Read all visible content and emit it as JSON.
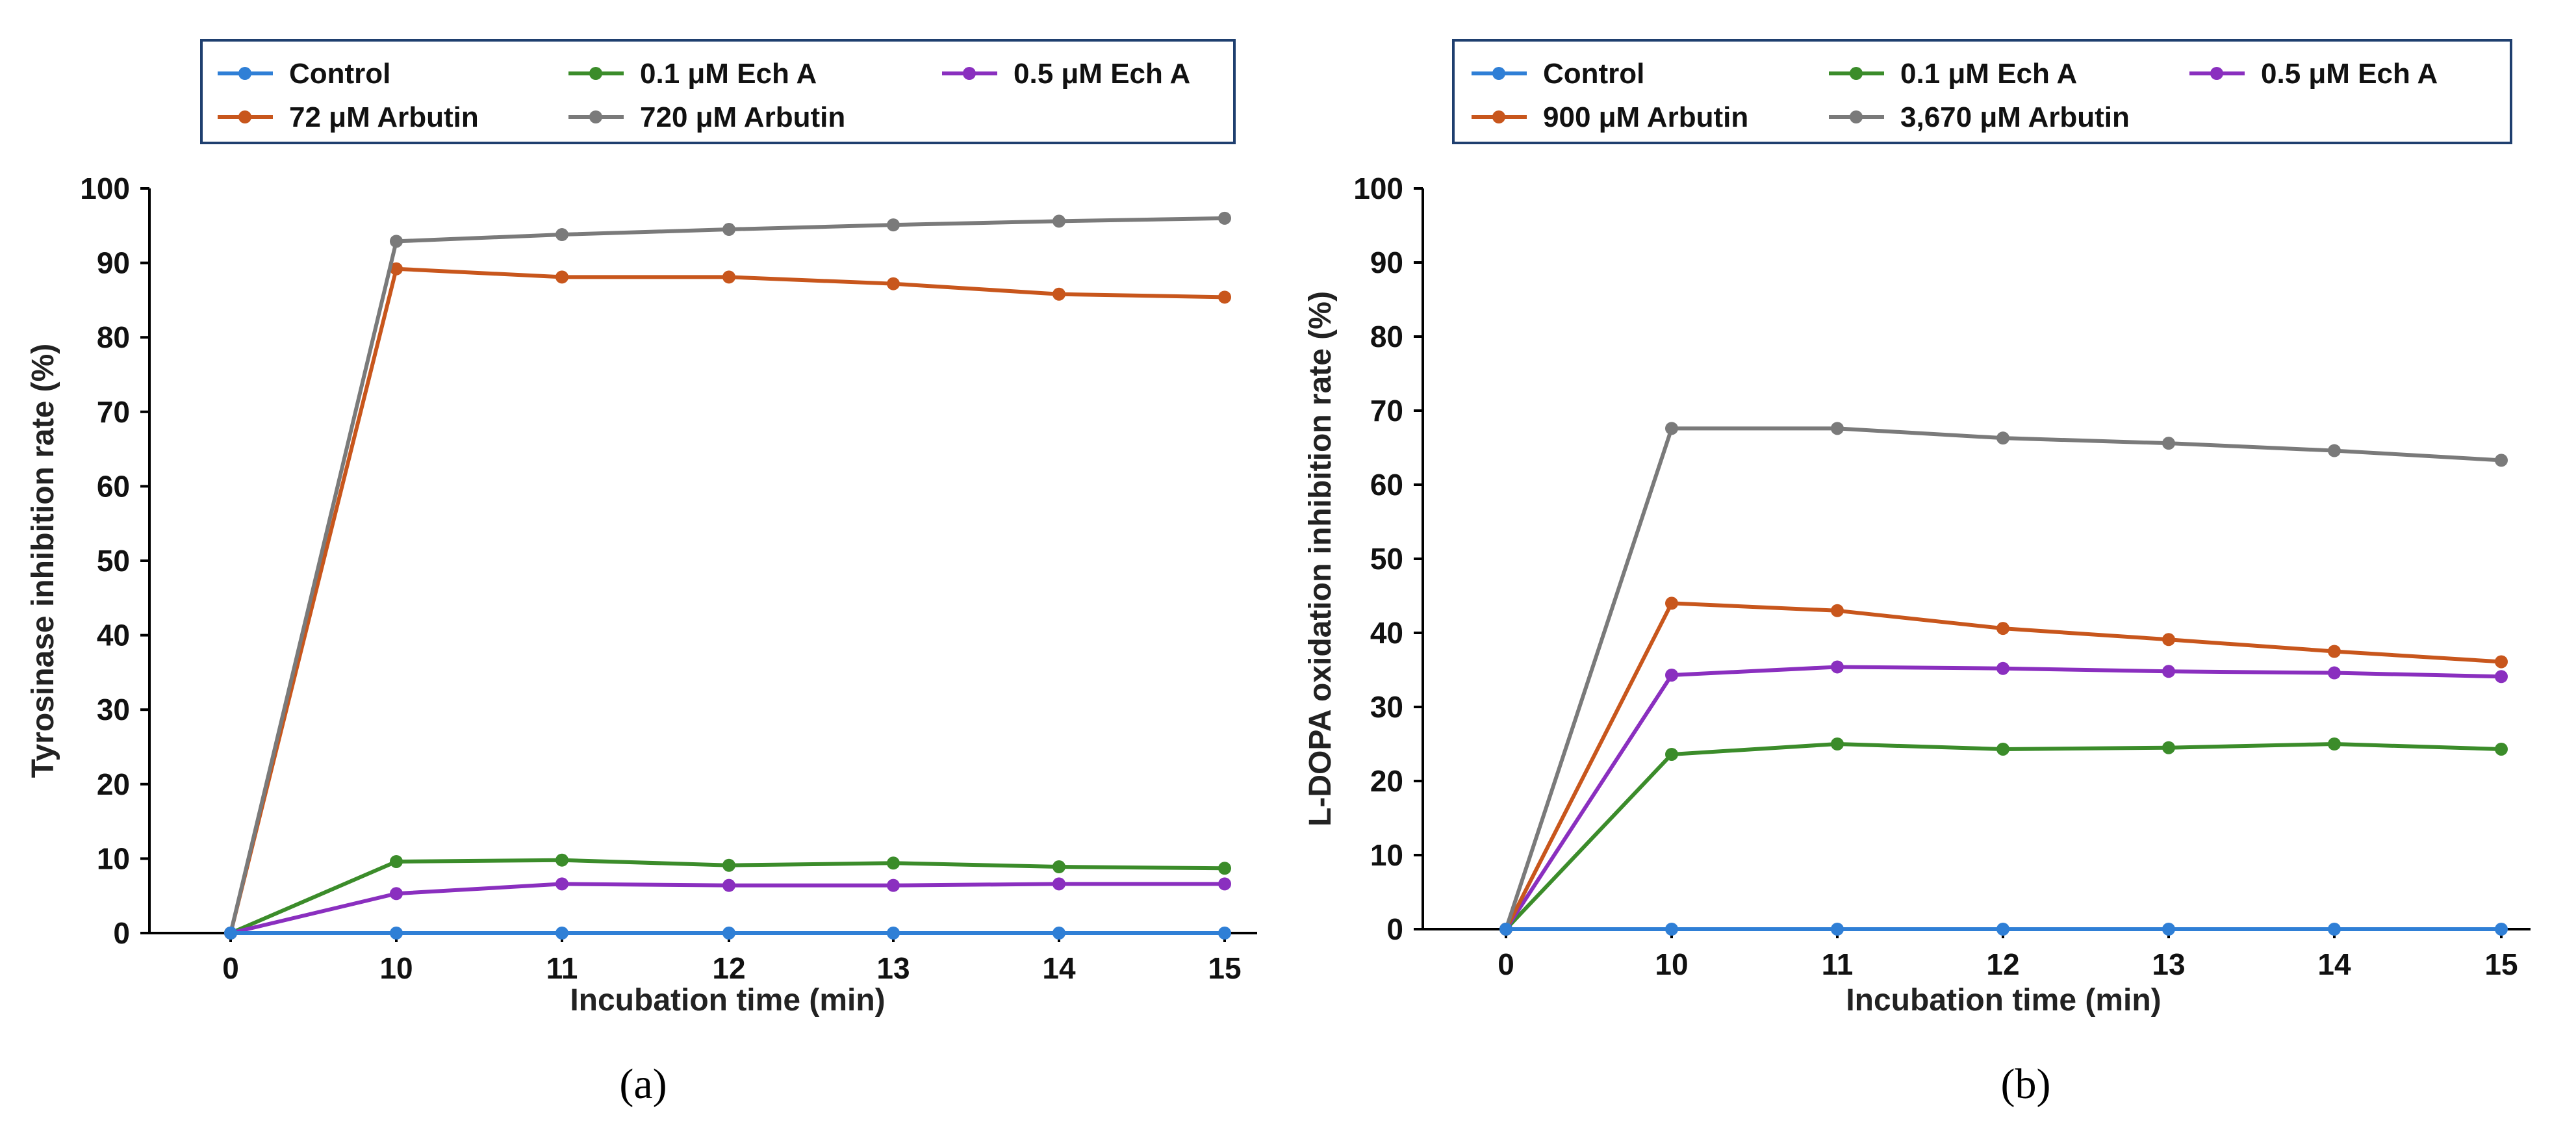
{
  "chart_data": [
    {
      "type": "line",
      "panel_label": "(a)",
      "xlabel": "Incubation time (min)",
      "ylabel": "Tyrosinase inhibition rate (%)",
      "categories": [
        "0",
        "10",
        "11",
        "12",
        "13",
        "14",
        "15"
      ],
      "ylim": [
        0,
        100
      ],
      "yticks": [
        "0",
        "10",
        "20",
        "30",
        "40",
        "50",
        "60",
        "70",
        "80",
        "90",
        "100"
      ],
      "legend_position": "top",
      "series": [
        {
          "name": "Control",
          "color": "#2f7fd6",
          "values": [
            0,
            0,
            0,
            0,
            0,
            0,
            0
          ]
        },
        {
          "name": "0.1 μM Ech A",
          "color": "#3b8c2a",
          "values": [
            0,
            9.6,
            9.8,
            9.1,
            9.4,
            8.9,
            8.7
          ]
        },
        {
          "name": "0.5 μM Ech A",
          "color": "#8a2fbf",
          "values": [
            0,
            5.3,
            6.6,
            6.4,
            6.4,
            6.6,
            6.6
          ]
        },
        {
          "name": "72 μM Arbutin",
          "color": "#c8561c",
          "values": [
            0,
            89.2,
            88.1,
            88.1,
            87.2,
            85.8,
            85.4
          ]
        },
        {
          "name": "720 μM Arbutin",
          "color": "#7a7a7a",
          "values": [
            0,
            92.9,
            93.8,
            94.5,
            95.1,
            95.6,
            96.0
          ]
        }
      ]
    },
    {
      "type": "line",
      "panel_label": "(b)",
      "xlabel": "Incubation time (min)",
      "ylabel": "L-DOPA oxidation inhibition rate (%)",
      "categories": [
        "0",
        "10",
        "11",
        "12",
        "13",
        "14",
        "15"
      ],
      "ylim": [
        0,
        100
      ],
      "yticks": [
        "0",
        "10",
        "20",
        "30",
        "40",
        "50",
        "60",
        "70",
        "80",
        "90",
        "100"
      ],
      "legend_position": "top",
      "series": [
        {
          "name": "Control",
          "color": "#2f7fd6",
          "values": [
            0,
            0,
            0,
            0,
            0,
            0,
            0
          ]
        },
        {
          "name": "0.1 μM Ech A",
          "color": "#3b8c2a",
          "values": [
            0,
            23.6,
            25.0,
            24.3,
            24.5,
            25.0,
            24.3
          ]
        },
        {
          "name": "0.5 μM Ech A",
          "color": "#8a2fbf",
          "values": [
            0,
            34.3,
            35.4,
            35.2,
            34.8,
            34.6,
            34.1
          ]
        },
        {
          "name": "900 μM Arbutin",
          "color": "#c8561c",
          "values": [
            0,
            44.0,
            43.0,
            40.6,
            39.1,
            37.5,
            36.1
          ]
        },
        {
          "name": "3,670 μM Arbutin",
          "color": "#7a7a7a",
          "values": [
            0,
            67.6,
            67.6,
            66.3,
            65.6,
            64.6,
            63.3
          ]
        }
      ]
    }
  ]
}
